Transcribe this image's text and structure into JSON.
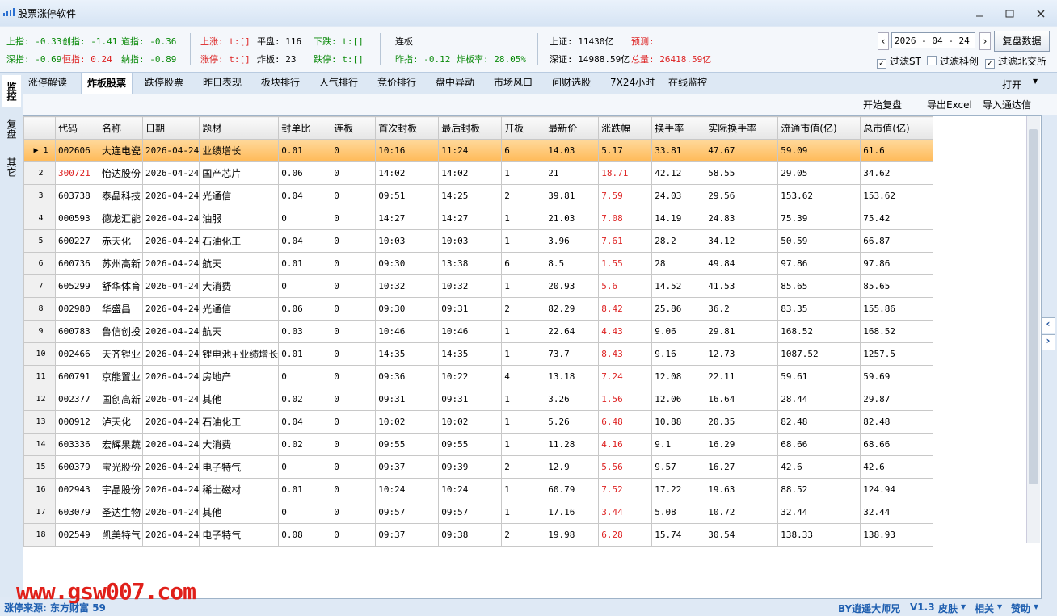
{
  "window": {
    "title": "股票涨停软件"
  },
  "stats": {
    "row1": [
      {
        "text": "上指: -0.33",
        "color": "#0a8a0a"
      },
      {
        "text": "创指: -1.41",
        "color": "#0a8a0a"
      },
      {
        "text": "道指: -0.36",
        "color": "#0a8a0a"
      },
      {
        "text": "上涨: t:[]",
        "color": "#d22"
      },
      {
        "text": "平盘: 116",
        "color": "#000"
      },
      {
        "text": "下跌: t:[]",
        "color": "#0a8a0a"
      },
      {
        "text": "连板",
        "color": "#000"
      },
      {
        "text": "上证: 11430亿",
        "color": "#000"
      },
      {
        "text": "预测:",
        "color": "#d22"
      }
    ],
    "row2": [
      {
        "text": "深指: -0.69",
        "color": "#0a8a0a"
      },
      {
        "text": "恒指: 0.24",
        "color": "#d22"
      },
      {
        "text": "纳指: -0.89",
        "color": "#0a8a0a"
      },
      {
        "text": "涨停: t:[]",
        "color": "#d22"
      },
      {
        "text": "炸板: 23",
        "color": "#000"
      },
      {
        "text": "跌停: t:[]",
        "color": "#0a8a0a"
      },
      {
        "text": "昨指: -0.12",
        "color": "#0a8a0a"
      },
      {
        "text": "炸板率: 28.05%",
        "color": "#0a8a0a"
      },
      {
        "text": "深证: 14988.59亿",
        "color": "#000"
      },
      {
        "text": "总量: 26418.59亿",
        "color": "#d22"
      }
    ]
  },
  "controls": {
    "date": "2026 - 04 - 24",
    "button": "复盘数据",
    "filters": [
      {
        "label": "过滤ST",
        "checked": true
      },
      {
        "label": "过滤科创",
        "checked": false
      },
      {
        "label": "过滤北交所",
        "checked": true
      }
    ]
  },
  "side_tabs": [
    "监控",
    "复盘",
    "其它"
  ],
  "tabs": [
    "涨停解读",
    "炸板股票",
    "跌停股票",
    "昨日表现",
    "板块排行",
    "人气排行",
    "竞价排行",
    "盘中异动",
    "市场风口",
    "问财选股",
    "7X24小时",
    "在线监控"
  ],
  "open_menu": "打开",
  "toolbar": [
    "开始复盘",
    "导出Excel",
    "导入通达信"
  ],
  "table": {
    "columns": [
      "代码",
      "名称",
      "日期",
      "题材",
      "封单比",
      "连板",
      "首次封板",
      "最后封板",
      "开板",
      "最新价",
      "涨跌幅",
      "换手率",
      "实际换手率",
      "流通市值(亿)",
      "总市值(亿)"
    ],
    "rows": [
      [
        "1",
        "002606",
        "大连电瓷",
        "2026-04-24",
        "业绩增长",
        "0.01",
        "0",
        "10:16",
        "11:24",
        "6",
        "14.03",
        "5.17",
        "33.81",
        "47.67",
        "59.09",
        "61.6"
      ],
      [
        "2",
        "300721",
        "怡达股份",
        "2026-04-24",
        "国产芯片",
        "0.06",
        "0",
        "14:02",
        "14:02",
        "1",
        "21",
        "18.71",
        "42.12",
        "58.55",
        "29.05",
        "34.62"
      ],
      [
        "3",
        "603738",
        "泰晶科技",
        "2026-04-24",
        "光通信",
        "0.04",
        "0",
        "09:51",
        "14:25",
        "2",
        "39.81",
        "7.59",
        "24.03",
        "29.56",
        "153.62",
        "153.62"
      ],
      [
        "4",
        "000593",
        "德龙汇能",
        "2026-04-24",
        "油服",
        "0",
        "0",
        "14:27",
        "14:27",
        "1",
        "21.03",
        "7.08",
        "14.19",
        "24.83",
        "75.39",
        "75.42"
      ],
      [
        "5",
        "600227",
        "赤天化",
        "2026-04-24",
        "石油化工",
        "0.04",
        "0",
        "10:03",
        "10:03",
        "1",
        "3.96",
        "7.61",
        "28.2",
        "34.12",
        "50.59",
        "66.87"
      ],
      [
        "6",
        "600736",
        "苏州高新",
        "2026-04-24",
        "航天",
        "0.01",
        "0",
        "09:30",
        "13:38",
        "6",
        "8.5",
        "1.55",
        "28",
        "49.84",
        "97.86",
        "97.86"
      ],
      [
        "7",
        "605299",
        "舒华体育",
        "2026-04-24",
        "大消费",
        "0",
        "0",
        "10:32",
        "10:32",
        "1",
        "20.93",
        "5.6",
        "14.52",
        "41.53",
        "85.65",
        "85.65"
      ],
      [
        "8",
        "002980",
        "华盛昌",
        "2026-04-24",
        "光通信",
        "0.06",
        "0",
        "09:30",
        "09:31",
        "2",
        "82.29",
        "8.42",
        "25.86",
        "36.2",
        "83.35",
        "155.86"
      ],
      [
        "9",
        "600783",
        "鲁信创投",
        "2026-04-24",
        "航天",
        "0.03",
        "0",
        "10:46",
        "10:46",
        "1",
        "22.64",
        "4.43",
        "9.06",
        "29.81",
        "168.52",
        "168.52"
      ],
      [
        "10",
        "002466",
        "天齐锂业",
        "2026-04-24",
        "锂电池+业绩增长",
        "0.01",
        "0",
        "14:35",
        "14:35",
        "1",
        "73.7",
        "8.43",
        "9.16",
        "12.73",
        "1087.52",
        "1257.5"
      ],
      [
        "11",
        "600791",
        "京能置业",
        "2026-04-24",
        "房地产",
        "0",
        "0",
        "09:36",
        "10:22",
        "4",
        "13.18",
        "7.24",
        "12.08",
        "22.11",
        "59.61",
        "59.69"
      ],
      [
        "12",
        "002377",
        "国创高新",
        "2026-04-24",
        "其他",
        "0.02",
        "0",
        "09:31",
        "09:31",
        "1",
        "3.26",
        "1.56",
        "12.06",
        "16.64",
        "28.44",
        "29.87"
      ],
      [
        "13",
        "000912",
        "泸天化",
        "2026-04-24",
        "石油化工",
        "0.04",
        "0",
        "10:02",
        "10:02",
        "1",
        "5.26",
        "6.48",
        "10.88",
        "20.35",
        "82.48",
        "82.48"
      ],
      [
        "14",
        "603336",
        "宏辉果蔬",
        "2026-04-24",
        "大消费",
        "0.02",
        "0",
        "09:55",
        "09:55",
        "1",
        "11.28",
        "4.16",
        "9.1",
        "16.29",
        "68.66",
        "68.66"
      ],
      [
        "15",
        "600379",
        "宝光股份",
        "2026-04-24",
        "电子特气",
        "0",
        "0",
        "09:37",
        "09:39",
        "2",
        "12.9",
        "5.56",
        "9.57",
        "16.27",
        "42.6",
        "42.6"
      ],
      [
        "16",
        "002943",
        "宇晶股份",
        "2026-04-24",
        "稀土磁材",
        "0.01",
        "0",
        "10:24",
        "10:24",
        "1",
        "60.79",
        "7.52",
        "17.22",
        "19.63",
        "88.52",
        "124.94"
      ],
      [
        "17",
        "603079",
        "圣达生物",
        "2026-04-24",
        "其他",
        "0",
        "0",
        "09:57",
        "09:57",
        "1",
        "17.16",
        "3.44",
        "5.08",
        "10.72",
        "32.44",
        "32.44"
      ],
      [
        "18",
        "002549",
        "凯美特气",
        "2026-04-24",
        "电子特气",
        "0.08",
        "0",
        "09:37",
        "09:38",
        "2",
        "19.98",
        "6.28",
        "15.74",
        "30.54",
        "138.33",
        "138.93"
      ]
    ]
  },
  "footer": {
    "source": "涨停来源: 东方财富 59",
    "watermark": "www.gsw007.com",
    "links": [
      "BY逍遥大师兄",
      "V1.3",
      "皮肤",
      "相关",
      "赞助"
    ]
  }
}
